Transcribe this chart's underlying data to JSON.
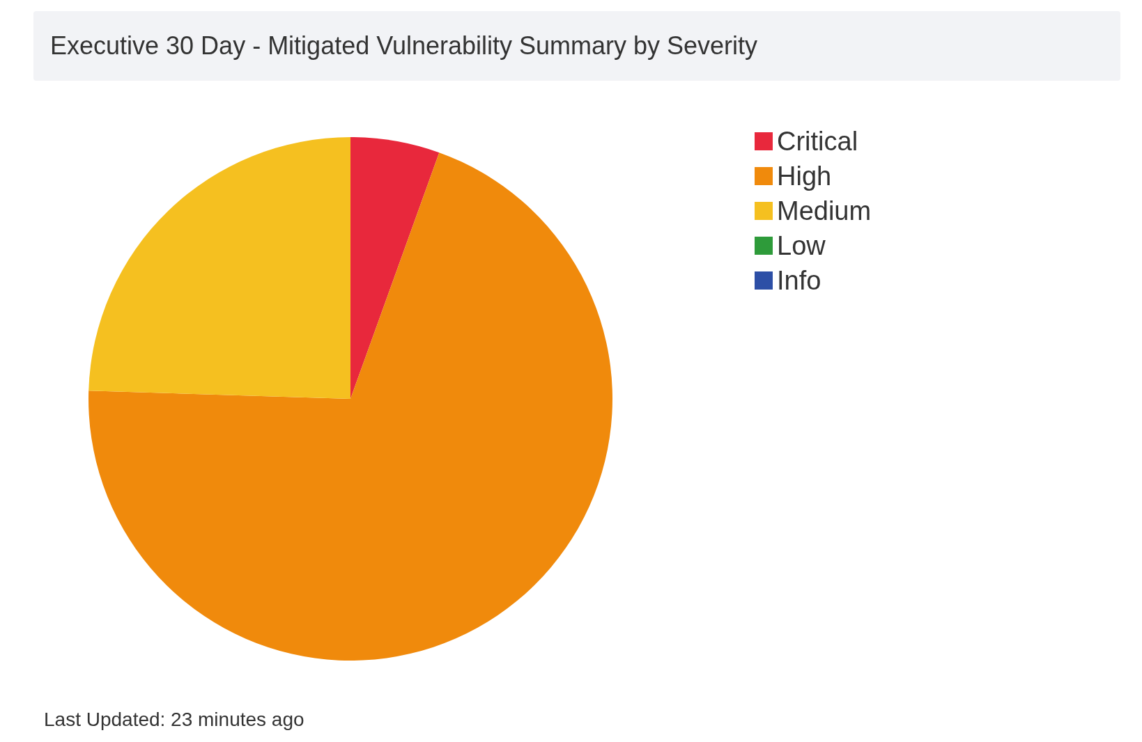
{
  "chart_data": {
    "type": "pie",
    "title": "Executive 30 Day - Mitigated Vulnerability Summary by Severity",
    "categories": [
      "Critical",
      "High",
      "Medium",
      "Low",
      "Info"
    ],
    "values": [
      5.5,
      70,
      24.5,
      0,
      0
    ],
    "colors": [
      "#e8283c",
      "#f08a0c",
      "#f5c020",
      "#2e9b3a",
      "#2d4fa6"
    ],
    "legend": "top right",
    "annotations": [
      "Last Updated: 23 minutes ago"
    ]
  }
}
